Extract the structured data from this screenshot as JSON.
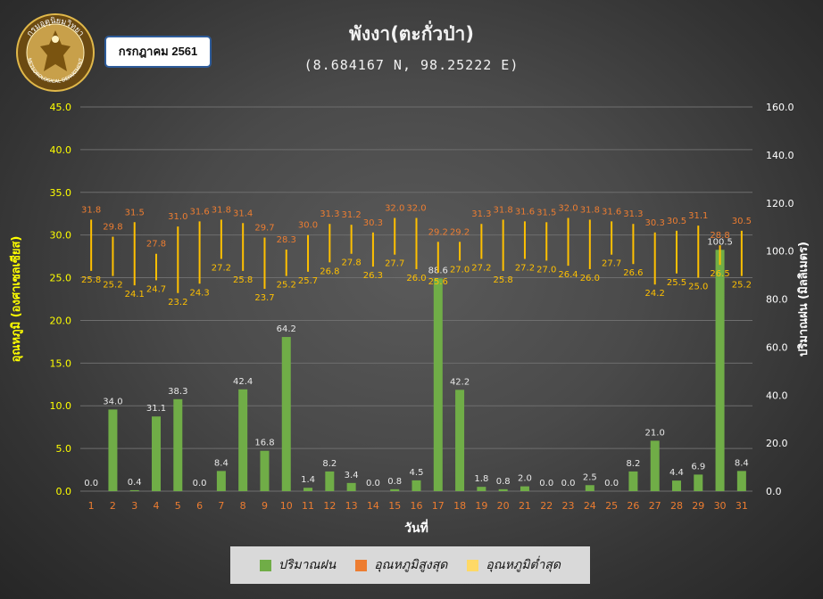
{
  "header": {
    "title": "พังงา(ตะกั่วป่า)",
    "coords": "(8.684167 N, 98.25222 E)",
    "month_badge": "กรกฎาคม 2561",
    "logo_text": "กรมอุตุนิยมวิทยา METEOROLOGICAL DEPARTMENT"
  },
  "colors": {
    "rain": "#70ad47",
    "max": "#ed7d31",
    "min": "#ffc000",
    "left_axis": "#ffff00",
    "right_axis": "#ffffff",
    "cat_label": "#ed7d31"
  },
  "chart_data": {
    "type": "bar",
    "categories": [
      "1",
      "2",
      "3",
      "4",
      "5",
      "6",
      "7",
      "8",
      "9",
      "10",
      "11",
      "12",
      "13",
      "14",
      "15",
      "16",
      "17",
      "18",
      "19",
      "20",
      "21",
      "22",
      "23",
      "24",
      "25",
      "26",
      "27",
      "28",
      "29",
      "30",
      "31"
    ],
    "series": [
      {
        "name": "ปริมาณฝน",
        "axis": "right",
        "values": [
          0.0,
          34.0,
          0.4,
          31.1,
          38.3,
          0.0,
          8.4,
          42.4,
          16.8,
          64.2,
          1.4,
          8.2,
          3.4,
          0.0,
          0.8,
          4.5,
          88.6,
          42.2,
          1.8,
          0.8,
          2.0,
          0.0,
          0.0,
          2.5,
          0.0,
          8.2,
          21.0,
          4.4,
          6.9,
          100.5,
          8.4
        ]
      },
      {
        "name": "อุณหภูมิสูงสุด",
        "axis": "left",
        "values": [
          31.8,
          29.8,
          31.5,
          27.8,
          31.0,
          31.6,
          31.8,
          31.4,
          29.7,
          28.3,
          30.0,
          31.3,
          31.2,
          30.3,
          32.0,
          32.0,
          29.2,
          29.2,
          31.3,
          31.8,
          31.6,
          31.5,
          32.0,
          31.8,
          31.6,
          31.3,
          30.3,
          30.5,
          31.1,
          28.8,
          30.5
        ]
      },
      {
        "name": "อุณหภูมิต่ำสุด",
        "axis": "left",
        "values": [
          25.8,
          25.2,
          24.1,
          24.7,
          23.2,
          24.3,
          27.2,
          25.8,
          23.7,
          25.2,
          25.7,
          26.8,
          27.8,
          26.3,
          27.7,
          26.0,
          25.6,
          27.0,
          27.2,
          25.8,
          27.2,
          27.0,
          26.4,
          26.0,
          27.7,
          26.6,
          24.2,
          25.5,
          25.0,
          26.5,
          25.2
        ]
      }
    ],
    "xlabel": "วันที่",
    "ylabel_left": "อุณหภูมิ (องศาเซลเซียส)",
    "ylabel_right": "ปริมาณฝน (มิลลิเมตร)",
    "ylim_left": [
      0,
      45
    ],
    "ylim_right": [
      0,
      160
    ],
    "yticks_left": [
      "0.0",
      "5.0",
      "10.0",
      "15.0",
      "20.0",
      "25.0",
      "30.0",
      "35.0",
      "40.0",
      "45.0"
    ],
    "yticks_right": [
      "0.0",
      "20.0",
      "40.0",
      "60.0",
      "80.0",
      "100.0",
      "120.0",
      "140.0",
      "160.0"
    ],
    "grid": true,
    "legend_position": "bottom"
  }
}
